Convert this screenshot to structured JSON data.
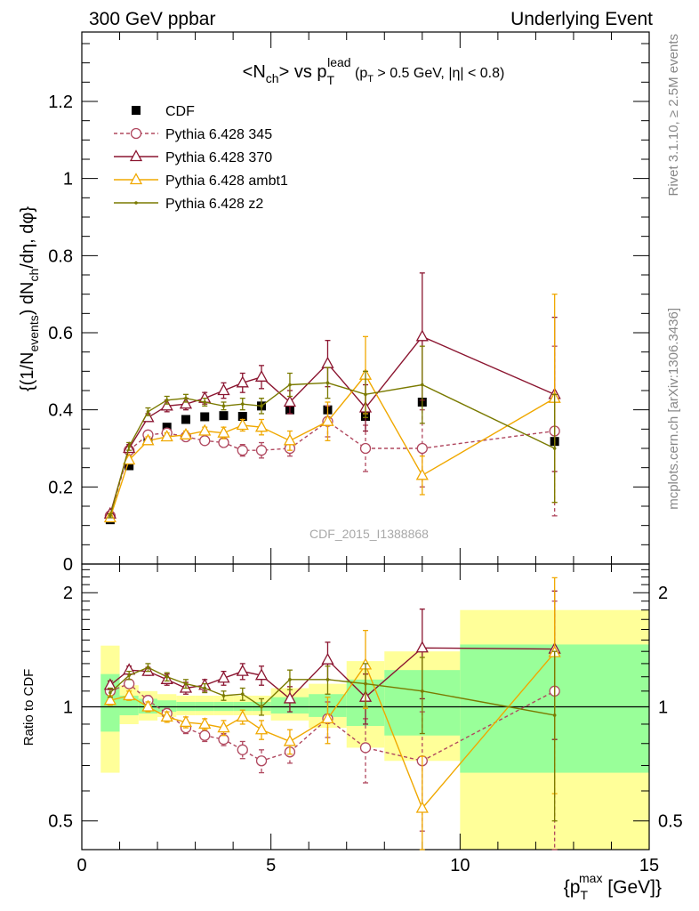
{
  "header": {
    "left": "300 GeV ppbar",
    "right": "Underlying Event"
  },
  "side_labels": {
    "top": "Rivet 3.1.10, ≥ 2.5M events",
    "bottom": "mcplots.cern.ch [arXiv:1306.3436]"
  },
  "chart_data": [
    {
      "type": "line",
      "panel": "main",
      "title_parts": {
        "pre": "<N",
        "sub1": "ch",
        "mid": "> vs p",
        "sub2": "T",
        "sup2": "lead",
        "cut_a": " (p",
        "cut_sub": "T",
        "cut_b": " > 0.5 GeV, |η| < 0.8)"
      },
      "ylabel_parts": {
        "a": "{(1/N",
        "sub1": "events",
        "b": ") dN",
        "sub2": "ch",
        "c": "/dη, dφ}"
      },
      "watermark": "CDF_2015_I1388868",
      "xlim": [
        0,
        15
      ],
      "ylim": [
        0,
        1.38
      ],
      "y_ticks": [
        0,
        0.2,
        0.4,
        0.6,
        0.8,
        1,
        1.2
      ],
      "y_tick_labels": [
        "0",
        "0.2",
        "0.4",
        "0.6",
        "0.8",
        "1",
        "1.2"
      ],
      "legend_position": "top-left",
      "series": [
        {
          "name": "CDF",
          "color": "#000000",
          "marker": "square",
          "line": "none",
          "x": [
            0.75,
            1.25,
            1.75,
            2.25,
            2.75,
            3.25,
            3.75,
            4.25,
            4.75,
            5.5,
            6.5,
            7.5,
            9.0,
            12.5
          ],
          "y": [
            0.115,
            0.255,
            0.325,
            0.355,
            0.375,
            0.382,
            0.385,
            0.383,
            0.41,
            0.4,
            0.4,
            0.383,
            0.42,
            0.318
          ],
          "err": [
            0.005,
            0.005,
            0.005,
            0.005,
            0.005,
            0.005,
            0.005,
            0.005,
            0.005,
            0.005,
            0.005,
            0.005,
            0.005,
            0.005
          ]
        },
        {
          "name": "Pythia 6.428 345",
          "color": "#b0485f",
          "marker": "circle",
          "line": "dashed",
          "x": [
            0.75,
            1.25,
            1.75,
            2.25,
            2.75,
            3.25,
            3.75,
            4.25,
            4.75,
            5.5,
            6.5,
            7.5,
            9.0,
            12.5
          ],
          "y": [
            0.125,
            0.295,
            0.335,
            0.34,
            0.33,
            0.32,
            0.315,
            0.295,
            0.295,
            0.3,
            0.37,
            0.3,
            0.3,
            0.345
          ],
          "err": [
            0.005,
            0.01,
            0.01,
            0.01,
            0.01,
            0.01,
            0.01,
            0.015,
            0.02,
            0.02,
            0.04,
            0.06,
            0.1,
            0.22
          ]
        },
        {
          "name": "Pythia 6.428 370",
          "color": "#8b1530",
          "marker": "triangle",
          "line": "solid",
          "x": [
            0.75,
            1.25,
            1.75,
            2.25,
            2.75,
            3.25,
            3.75,
            4.25,
            4.75,
            5.5,
            6.5,
            7.5,
            9.0,
            12.5
          ],
          "y": [
            0.13,
            0.3,
            0.38,
            0.41,
            0.415,
            0.43,
            0.45,
            0.47,
            0.485,
            0.42,
            0.52,
            0.405,
            0.59,
            0.44
          ],
          "err": [
            0.005,
            0.01,
            0.01,
            0.015,
            0.015,
            0.015,
            0.02,
            0.025,
            0.03,
            0.03,
            0.06,
            0.06,
            0.165,
            0.2
          ]
        },
        {
          "name": "Pythia 6.428 ambt1",
          "color": "#f0a800",
          "marker": "triangle",
          "line": "solid",
          "x": [
            0.75,
            1.25,
            1.75,
            2.25,
            2.75,
            3.25,
            3.75,
            4.25,
            4.75,
            5.5,
            6.5,
            7.5,
            9.0,
            12.5
          ],
          "y": [
            0.12,
            0.27,
            0.32,
            0.33,
            0.335,
            0.345,
            0.34,
            0.36,
            0.355,
            0.32,
            0.37,
            0.49,
            0.23,
            0.43
          ],
          "err": [
            0.005,
            0.01,
            0.01,
            0.01,
            0.01,
            0.01,
            0.015,
            0.015,
            0.02,
            0.025,
            0.05,
            0.1,
            0.05,
            0.27
          ]
        },
        {
          "name": "Pythia 6.428 z2",
          "color": "#7a7a00",
          "marker": "dot",
          "line": "solid",
          "x": [
            0.75,
            1.25,
            1.75,
            2.25,
            2.75,
            3.25,
            3.75,
            4.25,
            4.75,
            5.5,
            6.5,
            7.5,
            9.0,
            12.5
          ],
          "y": [
            0.125,
            0.305,
            0.395,
            0.425,
            0.43,
            0.42,
            0.41,
            0.415,
            0.41,
            0.465,
            0.47,
            0.44,
            0.465,
            0.3
          ],
          "err": [
            0.005,
            0.01,
            0.01,
            0.01,
            0.01,
            0.01,
            0.01,
            0.015,
            0.02,
            0.03,
            0.04,
            0.06,
            0.1,
            0.14
          ]
        }
      ]
    },
    {
      "type": "line",
      "panel": "ratio",
      "ylabel": "Ratio to CDF",
      "xlabel_parts": {
        "a": "{p",
        "sub": "T",
        "sup": "max",
        "b": " [GeV]}"
      },
      "xlim": [
        0,
        15
      ],
      "ylim": [
        0.42,
        2.38
      ],
      "y_scale": "log",
      "x_ticks": [
        0,
        5,
        10,
        15
      ],
      "x_tick_labels": [
        "0",
        "5",
        "10",
        "15"
      ],
      "y_ticks": [
        0.5,
        1,
        2
      ],
      "y_tick_labels": [
        "0.5",
        "1",
        "2"
      ],
      "bands": {
        "edges": [
          0.5,
          1.0,
          1.5,
          2.0,
          2.5,
          3.0,
          3.5,
          4.0,
          4.5,
          5.0,
          6.0,
          7.0,
          8.0,
          10.0,
          15.0
        ],
        "yellow": [
          [
            0.67,
            1.45
          ],
          [
            0.9,
            1.14
          ],
          [
            0.92,
            1.1
          ],
          [
            0.94,
            1.08
          ],
          [
            0.95,
            1.07
          ],
          [
            0.95,
            1.07
          ],
          [
            0.95,
            1.07
          ],
          [
            0.95,
            1.07
          ],
          [
            0.95,
            1.07
          ],
          [
            0.92,
            1.12
          ],
          [
            0.88,
            1.15
          ],
          [
            0.78,
            1.32
          ],
          [
            0.72,
            1.4
          ],
          [
            0.35,
            1.8
          ]
        ],
        "green": [
          [
            0.86,
            1.22
          ],
          [
            0.95,
            1.07
          ],
          [
            0.96,
            1.05
          ],
          [
            0.97,
            1.04
          ],
          [
            0.975,
            1.03
          ],
          [
            0.975,
            1.03
          ],
          [
            0.975,
            1.03
          ],
          [
            0.975,
            1.03
          ],
          [
            0.975,
            1.03
          ],
          [
            0.96,
            1.06
          ],
          [
            0.94,
            1.08
          ],
          [
            0.89,
            1.18
          ],
          [
            0.84,
            1.25
          ],
          [
            0.67,
            1.46
          ]
        ]
      },
      "series": [
        {
          "name": "Pythia 6.428 345",
          "x": [
            0.75,
            1.25,
            1.75,
            2.25,
            2.75,
            3.25,
            3.75,
            4.25,
            4.75,
            5.5,
            6.5,
            7.5,
            9.0,
            12.5
          ],
          "y": [
            1.1,
            1.15,
            1.04,
            0.96,
            0.88,
            0.84,
            0.82,
            0.77,
            0.72,
            0.76,
            0.93,
            0.78,
            0.72,
            1.1
          ],
          "err": [
            0.03,
            0.03,
            0.03,
            0.03,
            0.03,
            0.03,
            0.03,
            0.04,
            0.05,
            0.05,
            0.1,
            0.15,
            0.25,
            0.8
          ]
        },
        {
          "name": "Pythia 6.428 370",
          "x": [
            0.75,
            1.25,
            1.75,
            2.25,
            2.75,
            3.25,
            3.75,
            4.25,
            4.75,
            5.5,
            6.5,
            7.5,
            9.0,
            12.5
          ],
          "y": [
            1.14,
            1.25,
            1.24,
            1.18,
            1.12,
            1.14,
            1.19,
            1.24,
            1.21,
            1.05,
            1.33,
            1.06,
            1.43,
            1.42
          ],
          "err": [
            0.03,
            0.03,
            0.03,
            0.04,
            0.04,
            0.04,
            0.05,
            0.06,
            0.07,
            0.08,
            0.15,
            0.16,
            0.38,
            0.6
          ]
        },
        {
          "name": "Pythia 6.428 ambt1",
          "x": [
            0.75,
            1.25,
            1.75,
            2.25,
            2.75,
            3.25,
            3.75,
            4.25,
            4.75,
            5.5,
            6.5,
            7.5,
            9.0,
            12.5
          ],
          "y": [
            1.04,
            1.07,
            1.0,
            0.94,
            0.91,
            0.9,
            0.88,
            0.94,
            0.87,
            0.81,
            0.93,
            1.29,
            0.54,
            1.39
          ],
          "err": [
            0.03,
            0.03,
            0.03,
            0.03,
            0.03,
            0.03,
            0.04,
            0.04,
            0.05,
            0.06,
            0.13,
            0.3,
            0.2,
            0.8
          ]
        },
        {
          "name": "Pythia 6.428 z2",
          "x": [
            0.75,
            1.25,
            1.75,
            2.25,
            2.75,
            3.25,
            3.75,
            4.25,
            4.75,
            5.5,
            6.5,
            7.5,
            9.0,
            12.5
          ],
          "y": [
            1.09,
            1.21,
            1.27,
            1.2,
            1.15,
            1.12,
            1.07,
            1.08,
            1.0,
            1.18,
            1.18,
            1.15,
            1.1,
            0.95
          ],
          "err": [
            0.03,
            0.03,
            0.03,
            0.03,
            0.03,
            0.03,
            0.03,
            0.04,
            0.05,
            0.07,
            0.1,
            0.15,
            0.25,
            0.45
          ]
        }
      ]
    }
  ]
}
